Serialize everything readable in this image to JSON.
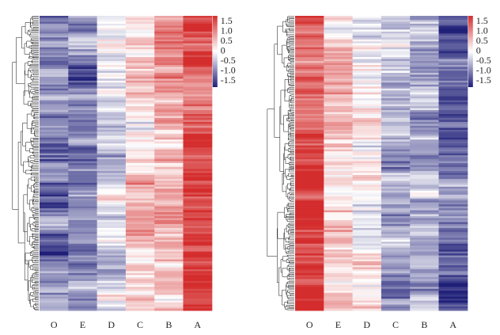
{
  "chart_data": [
    {
      "type": "heatmap",
      "title": "",
      "columns": [
        "O",
        "E",
        "D",
        "C",
        "B",
        "A"
      ],
      "column_mean_zscore": [
        -1.0,
        -0.8,
        -0.2,
        0.3,
        0.5,
        1.4
      ],
      "rows_approx": 150,
      "row_dendrogram": true,
      "colorbar": {
        "ticks": [
          "1.5",
          "1.0",
          "0.5",
          "0",
          "-0.5",
          "-1.0",
          "-1.5"
        ],
        "range": [
          -1.5,
          1.5
        ],
        "low_color": "#1f1f78",
        "mid_color": "#ffffff",
        "high_color": "#d42d2d"
      }
    },
    {
      "type": "heatmap",
      "title": "",
      "columns": [
        "O",
        "E",
        "D",
        "C",
        "B",
        "A"
      ],
      "column_mean_zscore": [
        1.5,
        0.35,
        0.1,
        -0.5,
        -0.7,
        -1.0
      ],
      "rows_approx": 150,
      "row_dendrogram": true,
      "colorbar": {
        "ticks": [
          "1.5",
          "1.0",
          "0.5",
          "0",
          "-0.5",
          "-1.0",
          "-1.5"
        ],
        "range": [
          -1.5,
          1.5
        ],
        "low_color": "#1f1f78",
        "mid_color": "#ffffff",
        "high_color": "#d42d2d"
      }
    }
  ]
}
